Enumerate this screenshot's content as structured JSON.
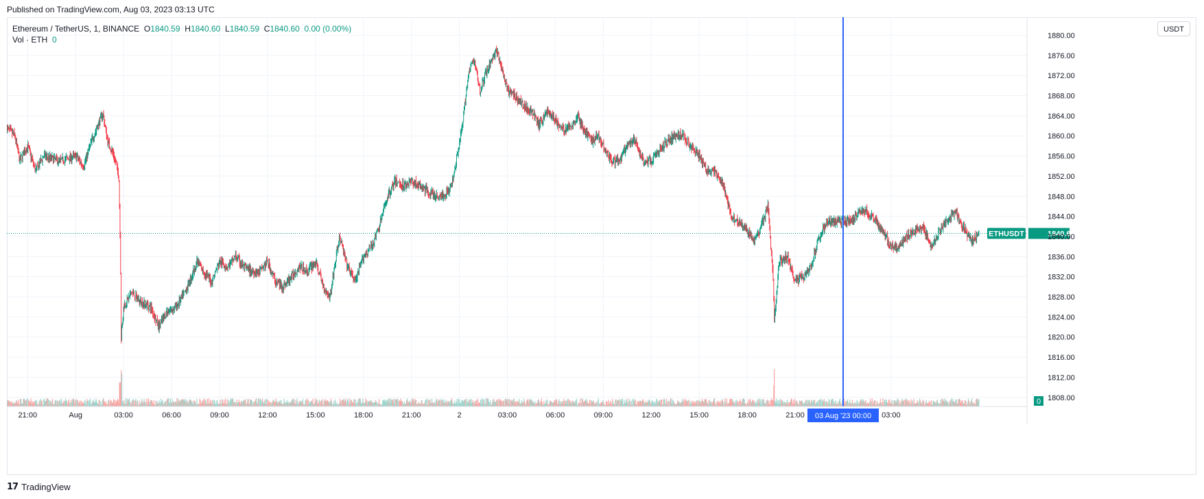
{
  "header": {
    "published": "Published on TradingView.com, Aug 03, 2023 03:13 UTC"
  },
  "legend": {
    "symbol": "Ethereum / TetherUS, 1, BINANCE",
    "open_label": "O",
    "open": "1840.59",
    "high_label": "H",
    "high": "1840.60",
    "low_label": "L",
    "low": "1840.59",
    "close_label": "C",
    "close": "1840.60",
    "change": "0.00 (0.00%)",
    "volume_label": "Vol · ETH",
    "volume": "0"
  },
  "toolbar": {
    "currency_button": "USDT"
  },
  "footer": {
    "brand": "TradingView",
    "logo_icon": "tradingview-logo-icon"
  },
  "colors": {
    "up": "#089981",
    "down": "#f23645",
    "crosshair": "#2962ff",
    "grid": "#f0f3fa"
  },
  "chart_data": {
    "type": "candlestick",
    "symbol": "ETHUSDT",
    "y_ticks": [
      "1808.00",
      "1812.00",
      "1816.00",
      "1820.00",
      "1824.00",
      "1828.00",
      "1832.00",
      "1836.00",
      "1840.00",
      "1844.00",
      "1848.00",
      "1852.00",
      "1856.00",
      "1860.00",
      "1864.00",
      "1868.00",
      "1872.00",
      "1876.00",
      "1880.00"
    ],
    "ylim": [
      1806.2,
      1883.6
    ],
    "x_ticks": [
      "21:00",
      "Aug",
      "03:00",
      "06:00",
      "09:00",
      "12:00",
      "15:00",
      "18:00",
      "21:00",
      "2",
      "03:00",
      "06:00",
      "09:00",
      "12:00",
      "15:00",
      "18:00",
      "21:00",
      "03:00"
    ],
    "x_tick_hours": [
      21,
      24,
      27,
      30,
      33,
      36,
      39,
      42,
      45,
      48,
      51,
      54,
      57,
      60,
      63,
      66,
      69,
      75
    ],
    "last_price": "1840.60",
    "last_label": "ETHUSDT",
    "volume_last": "0",
    "crosshair_label": "03 Aug '23   00:00",
    "crosshair_hour": 72,
    "price_path": [
      [
        19.7,
        1861.5
      ],
      [
        20.2,
        1860
      ],
      [
        20.5,
        1855
      ],
      [
        21.0,
        1858
      ],
      [
        21.5,
        1853
      ],
      [
        22.0,
        1856
      ],
      [
        23.0,
        1855
      ],
      [
        24.0,
        1856
      ],
      [
        24.5,
        1854
      ],
      [
        25.0,
        1859
      ],
      [
        25.7,
        1864.5
      ],
      [
        26.0,
        1859
      ],
      [
        26.4,
        1856
      ],
      [
        26.7,
        1852
      ],
      [
        26.8,
        1837
      ],
      [
        26.85,
        1820
      ],
      [
        27.0,
        1826
      ],
      [
        27.5,
        1829
      ],
      [
        28.0,
        1827
      ],
      [
        28.7,
        1826
      ],
      [
        29.2,
        1822
      ],
      [
        29.7,
        1825
      ],
      [
        30.3,
        1826
      ],
      [
        31.0,
        1830
      ],
      [
        31.6,
        1835
      ],
      [
        32.0,
        1833
      ],
      [
        32.5,
        1831
      ],
      [
        33.0,
        1835
      ],
      [
        33.5,
        1834
      ],
      [
        34.0,
        1836
      ],
      [
        34.5,
        1834
      ],
      [
        35.0,
        1833
      ],
      [
        35.5,
        1833
      ],
      [
        36.0,
        1835
      ],
      [
        36.5,
        1831
      ],
      [
        37.0,
        1830
      ],
      [
        37.5,
        1832
      ],
      [
        38.0,
        1834
      ],
      [
        38.5,
        1833
      ],
      [
        39.0,
        1835
      ],
      [
        39.5,
        1830
      ],
      [
        39.9,
        1828
      ],
      [
        40.0,
        1830
      ],
      [
        40.2,
        1834
      ],
      [
        40.5,
        1840
      ],
      [
        41.0,
        1834
      ],
      [
        41.5,
        1831
      ],
      [
        42.0,
        1836
      ],
      [
        42.5,
        1838
      ],
      [
        43.0,
        1842
      ],
      [
        43.5,
        1848
      ],
      [
        44.0,
        1851
      ],
      [
        44.5,
        1850
      ],
      [
        45.0,
        1851
      ],
      [
        45.5,
        1850
      ],
      [
        46.0,
        1849
      ],
      [
        46.5,
        1848
      ],
      [
        47.0,
        1848
      ],
      [
        47.5,
        1850
      ],
      [
        47.9,
        1857
      ],
      [
        48.2,
        1862
      ],
      [
        48.5,
        1871
      ],
      [
        48.8,
        1875
      ],
      [
        49.0,
        1874
      ],
      [
        49.3,
        1869
      ],
      [
        49.6,
        1872
      ],
      [
        50.0,
        1875
      ],
      [
        50.3,
        1877
      ],
      [
        50.6,
        1874
      ],
      [
        51.0,
        1869
      ],
      [
        51.5,
        1868
      ],
      [
        52.0,
        1866
      ],
      [
        52.5,
        1865
      ],
      [
        53.0,
        1862
      ],
      [
        53.5,
        1865
      ],
      [
        54.0,
        1863
      ],
      [
        54.5,
        1861
      ],
      [
        55.0,
        1862
      ],
      [
        55.4,
        1864
      ],
      [
        55.8,
        1861
      ],
      [
        56.3,
        1859
      ],
      [
        56.7,
        1860
      ],
      [
        57.0,
        1858
      ],
      [
        57.5,
        1855
      ],
      [
        58.0,
        1855
      ],
      [
        58.5,
        1858
      ],
      [
        59.0,
        1859
      ],
      [
        59.5,
        1855
      ],
      [
        60.0,
        1855
      ],
      [
        60.5,
        1857
      ],
      [
        61.0,
        1859
      ],
      [
        61.5,
        1860
      ],
      [
        62.0,
        1860
      ],
      [
        62.5,
        1858
      ],
      [
        63.0,
        1856
      ],
      [
        63.5,
        1853
      ],
      [
        64.0,
        1853
      ],
      [
        64.5,
        1850
      ],
      [
        65.0,
        1844
      ],
      [
        65.5,
        1843
      ],
      [
        66.0,
        1841
      ],
      [
        66.5,
        1839
      ],
      [
        67.0,
        1843
      ],
      [
        67.3,
        1846
      ],
      [
        67.6,
        1833
      ],
      [
        67.7,
        1823
      ],
      [
        68.0,
        1835
      ],
      [
        68.5,
        1836
      ],
      [
        69.0,
        1831
      ],
      [
        69.5,
        1832
      ],
      [
        70.0,
        1834
      ],
      [
        70.5,
        1840
      ],
      [
        71.0,
        1843
      ],
      [
        71.5,
        1843
      ],
      [
        72.0,
        1843
      ],
      [
        72.5,
        1843
      ],
      [
        73.0,
        1845
      ],
      [
        73.5,
        1845
      ],
      [
        74.0,
        1843
      ],
      [
        74.5,
        1841
      ],
      [
        75.0,
        1838
      ],
      [
        75.5,
        1838
      ],
      [
        76.0,
        1840
      ],
      [
        76.5,
        1841
      ],
      [
        77.0,
        1842
      ],
      [
        77.5,
        1838
      ],
      [
        78.0,
        1841
      ],
      [
        78.5,
        1843
      ],
      [
        79.0,
        1845
      ],
      [
        79.5,
        1842
      ],
      [
        80.0,
        1839
      ],
      [
        80.5,
        1840.6
      ]
    ],
    "x_domain_hours": [
      19.7,
      83.5
    ]
  }
}
